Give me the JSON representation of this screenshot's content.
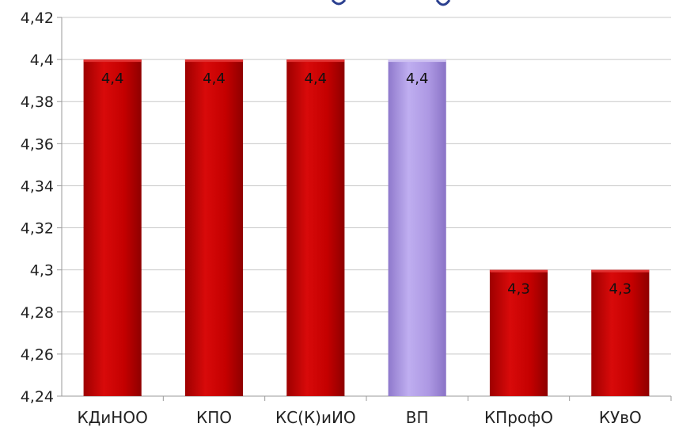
{
  "chart_data": {
    "type": "bar",
    "categories": [
      "КДиНОО",
      "КПО",
      "КС(К)иИО",
      "ВП",
      "КПрофО",
      "КУвО"
    ],
    "values": [
      4.4,
      4.4,
      4.4,
      4.4,
      4.3,
      4.3
    ],
    "data_labels": [
      "4,4",
      "4,4",
      "4,4",
      "4,4",
      "4,3",
      "4,3"
    ],
    "ylim": [
      4.24,
      4.42
    ],
    "yticks": [
      4.24,
      4.26,
      4.28,
      4.3,
      4.32,
      4.34,
      4.36,
      4.38,
      4.4,
      4.42
    ],
    "ytick_labels": [
      "4,24",
      "4,26",
      "4,28",
      "4,3",
      "4,32",
      "4,34",
      "4,36",
      "4,38",
      "4,4",
      "4,42"
    ],
    "grid": true,
    "colors": {
      "default_bar": "#c40000",
      "default_bar_light": "#e23030",
      "highlight_bar": "#ad98e3",
      "highlight_bar_light": "#cfc2f2",
      "gridline": "#c8c8c8",
      "axis": "#9a9a9a"
    },
    "highlight_index": 3
  }
}
